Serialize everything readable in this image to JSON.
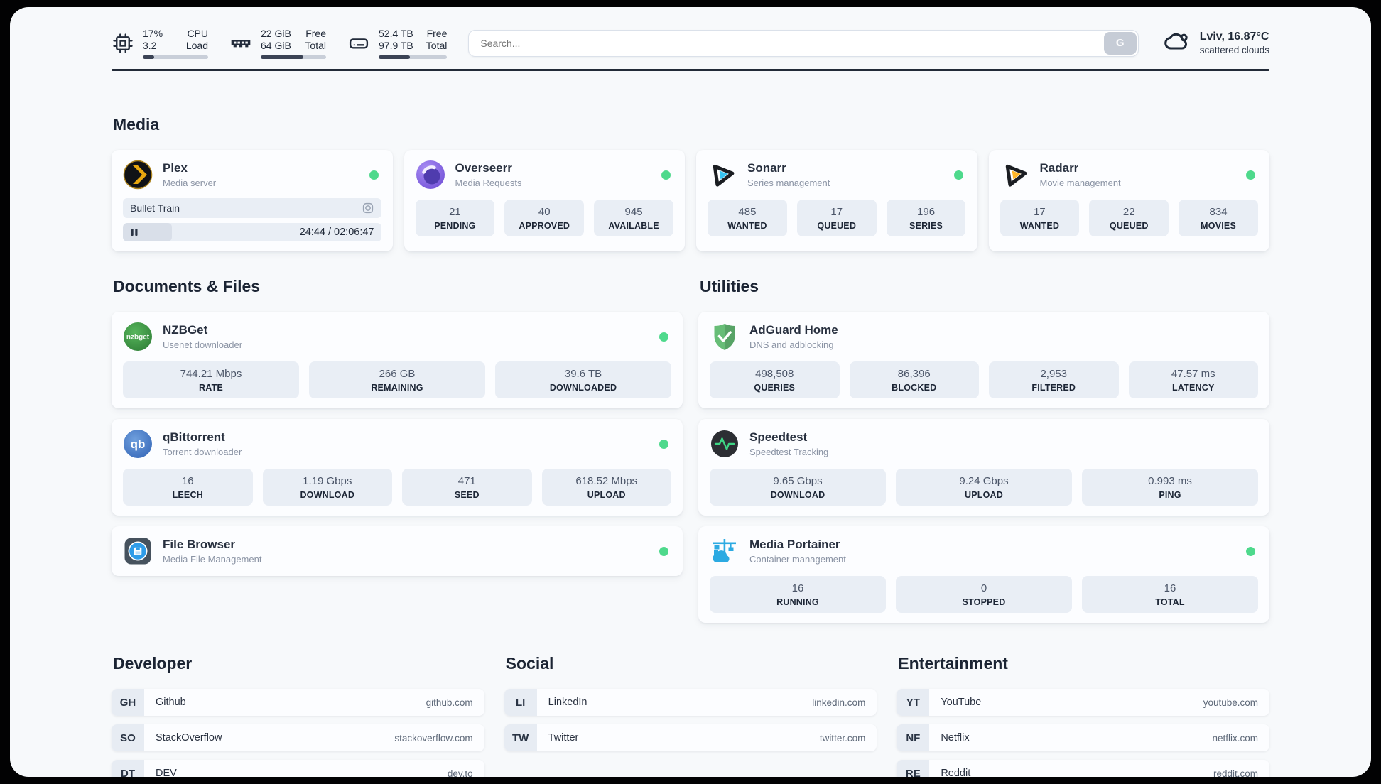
{
  "system_stats": [
    {
      "name": "cpu",
      "values": [
        "17%",
        "3.2"
      ],
      "labels": [
        "CPU",
        "Load"
      ],
      "progress_pct": 17
    },
    {
      "name": "memory",
      "values": [
        "22 GiB",
        "64 GiB"
      ],
      "labels": [
        "Free",
        "Total"
      ],
      "progress_pct": 65
    },
    {
      "name": "disk",
      "values": [
        "52.4 TB",
        "97.9 TB"
      ],
      "labels": [
        "Free",
        "Total"
      ],
      "progress_pct": 46
    }
  ],
  "search": {
    "placeholder": "Search...",
    "button_label": "G"
  },
  "weather": {
    "location": "Lviv, 16.87°C",
    "condition": "scattered clouds"
  },
  "media": {
    "heading": "Media",
    "plex": {
      "title": "Plex",
      "subtitle": "Media server",
      "now_playing": "Bullet Train",
      "time": "24:44 / 02:06:47",
      "progress_pct": 19
    },
    "overseerr": {
      "title": "Overseerr",
      "subtitle": "Media Requests",
      "stats": [
        {
          "value": "21",
          "label": "PENDING"
        },
        {
          "value": "40",
          "label": "APPROVED"
        },
        {
          "value": "945",
          "label": "AVAILABLE"
        }
      ]
    },
    "sonarr": {
      "title": "Sonarr",
      "subtitle": "Series management",
      "stats": [
        {
          "value": "485",
          "label": "WANTED"
        },
        {
          "value": "17",
          "label": "QUEUED"
        },
        {
          "value": "196",
          "label": "SERIES"
        }
      ]
    },
    "radarr": {
      "title": "Radarr",
      "subtitle": "Movie management",
      "stats": [
        {
          "value": "17",
          "label": "WANTED"
        },
        {
          "value": "22",
          "label": "QUEUED"
        },
        {
          "value": "834",
          "label": "MOVIES"
        }
      ]
    }
  },
  "documents": {
    "heading": "Documents & Files",
    "nzbget": {
      "title": "NZBGet",
      "subtitle": "Usenet downloader",
      "stats": [
        {
          "value": "744.21 Mbps",
          "label": "RATE"
        },
        {
          "value": "266 GB",
          "label": "REMAINING"
        },
        {
          "value": "39.6 TB",
          "label": "DOWNLOADED"
        }
      ]
    },
    "qbittorrent": {
      "title": "qBittorrent",
      "subtitle": "Torrent downloader",
      "stats": [
        {
          "value": "16",
          "label": "LEECH"
        },
        {
          "value": "1.19 Gbps",
          "label": "DOWNLOAD"
        },
        {
          "value": "471",
          "label": "SEED"
        },
        {
          "value": "618.52 Mbps",
          "label": "UPLOAD"
        }
      ]
    },
    "filebrowser": {
      "title": "File Browser",
      "subtitle": "Media File Management"
    }
  },
  "utilities": {
    "heading": "Utilities",
    "adguard": {
      "title": "AdGuard Home",
      "subtitle": "DNS and adblocking",
      "stats": [
        {
          "value": "498,508",
          "label": "QUERIES"
        },
        {
          "value": "86,396",
          "label": "BLOCKED"
        },
        {
          "value": "2,953",
          "label": "FILTERED"
        },
        {
          "value": "47.57 ms",
          "label": "LATENCY"
        }
      ]
    },
    "speedtest": {
      "title": "Speedtest",
      "subtitle": "Speedtest Tracking",
      "stats": [
        {
          "value": "9.65 Gbps",
          "label": "DOWNLOAD"
        },
        {
          "value": "9.24 Gbps",
          "label": "UPLOAD"
        },
        {
          "value": "0.993 ms",
          "label": "PING"
        }
      ]
    },
    "portainer": {
      "title": "Media Portainer",
      "subtitle": "Container management",
      "stats": [
        {
          "value": "16",
          "label": "RUNNING"
        },
        {
          "value": "0",
          "label": "STOPPED"
        },
        {
          "value": "16",
          "label": "TOTAL"
        }
      ]
    }
  },
  "bookmarks": [
    {
      "heading": "Developer",
      "links": [
        {
          "abbr": "GH",
          "name": "Github",
          "url": "github.com"
        },
        {
          "abbr": "SO",
          "name": "StackOverflow",
          "url": "stackoverflow.com"
        },
        {
          "abbr": "DT",
          "name": "DEV",
          "url": "dev.to"
        }
      ]
    },
    {
      "heading": "Social",
      "links": [
        {
          "abbr": "LI",
          "name": "LinkedIn",
          "url": "linkedin.com"
        },
        {
          "abbr": "TW",
          "name": "Twitter",
          "url": "twitter.com"
        }
      ]
    },
    {
      "heading": "Entertainment",
      "links": [
        {
          "abbr": "YT",
          "name": "YouTube",
          "url": "youtube.com"
        },
        {
          "abbr": "NF",
          "name": "Netflix",
          "url": "netflix.com"
        },
        {
          "abbr": "RE",
          "name": "Reddit",
          "url": "reddit.com"
        }
      ]
    }
  ],
  "colors": {
    "status_online": "#4ed98c",
    "page_bg": "#f7f9fb",
    "card_bg": "#fcfdff",
    "stat_box_bg": "#e9eef5",
    "divider": "#222b38",
    "text_dark": "#222b3a"
  }
}
